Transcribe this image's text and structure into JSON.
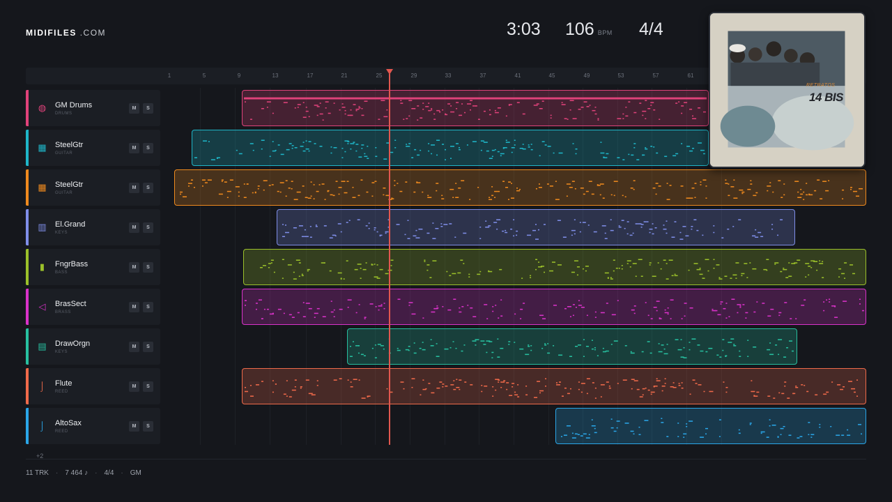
{
  "brand": {
    "name_bold": "MIDIFILES",
    "name_light": ".COM"
  },
  "transport": {
    "time": "3:03",
    "tempo": "106",
    "tempo_unit": "BPM",
    "signature": "4/4"
  },
  "ruler": {
    "ticks": [
      "1",
      "5",
      "9",
      "13",
      "17",
      "21",
      "25",
      "29",
      "33",
      "37",
      "41",
      "45",
      "49",
      "53",
      "57",
      "61"
    ]
  },
  "tracks": [
    {
      "name": "GM Drums",
      "category": "DRUMS",
      "color": "#e0427a",
      "icon": "drum-icon",
      "mute": "M",
      "solo": "S"
    },
    {
      "name": "SteelGtr",
      "category": "GUITAR",
      "color": "#1fb6c8",
      "icon": "guitar-fretboard-icon",
      "mute": "M",
      "solo": "S"
    },
    {
      "name": "SteelGtr",
      "category": "GUITAR",
      "color": "#ef8a1e",
      "icon": "guitar-fretboard-icon",
      "mute": "M",
      "solo": "S"
    },
    {
      "name": "El.Grand",
      "category": "KEYS",
      "color": "#7f8ee8",
      "icon": "piano-keys-icon",
      "mute": "M",
      "solo": "S"
    },
    {
      "name": "FngrBass",
      "category": "BASS",
      "color": "#9bc02a",
      "icon": "bass-icon",
      "mute": "M",
      "solo": "S"
    },
    {
      "name": "BrasSect",
      "category": "BRASS",
      "color": "#d932c9",
      "icon": "horn-icon",
      "mute": "M",
      "solo": "S"
    },
    {
      "name": "DrawOrgn",
      "category": "KEYS",
      "color": "#27c0a0",
      "icon": "organ-keys-icon",
      "mute": "M",
      "solo": "S"
    },
    {
      "name": "Flute",
      "category": "REED",
      "color": "#f06a4a",
      "icon": "flute-icon",
      "mute": "M",
      "solo": "S"
    },
    {
      "name": "AltoSax",
      "category": "REED",
      "color": "#2aa6e8",
      "icon": "saxophone-icon",
      "mute": "M",
      "solo": "S"
    }
  ],
  "more_tracks": "+2",
  "footer": {
    "tracks": "11 TRK",
    "notes": "7 464 ♪",
    "signature": "4/4",
    "format": "GM"
  },
  "album": {
    "subtitle": "RETRATOS",
    "artist": "14 BIS"
  }
}
